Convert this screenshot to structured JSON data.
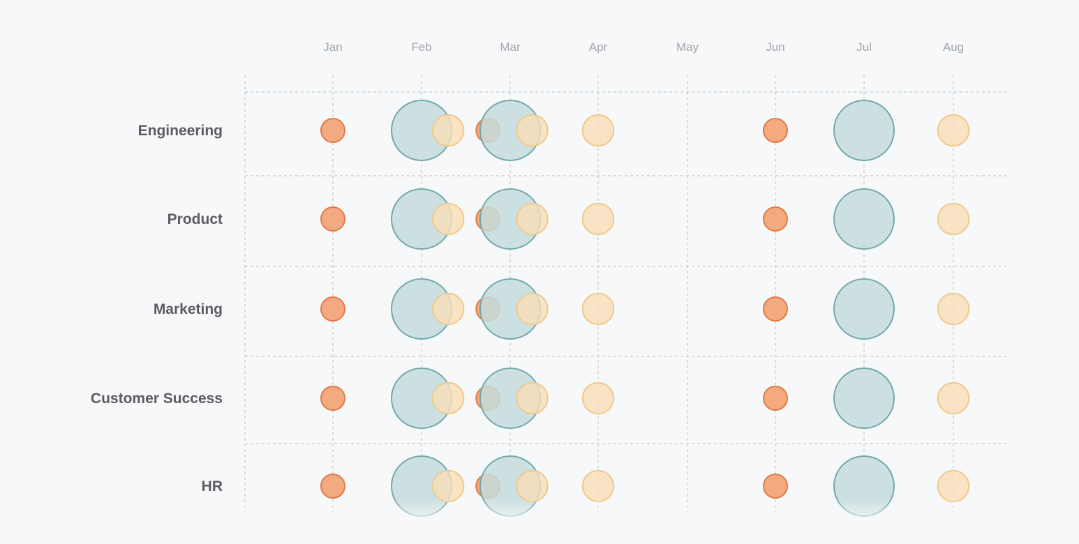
{
  "chart_data": {
    "type": "scatter",
    "subtype": "bubble-timeline",
    "months": [
      "Jan",
      "Feb",
      "Mar",
      "Apr",
      "May",
      "Jun",
      "Jul",
      "Aug"
    ],
    "rows": [
      "Engineering",
      "Product",
      "Marketing",
      "Customer Success",
      "HR"
    ],
    "grid": true,
    "colors": {
      "orange_fill": "#f2a57a",
      "orange_stroke": "#e07a45",
      "teal_fill": "#c4dcdd",
      "teal_stroke": "#72a9ab",
      "peach_fill": "#f8ddb8",
      "peach_stroke": "#f1c98c",
      "grid": "#c6c9cd",
      "background": "#f7f8f9"
    },
    "series": [
      {
        "kind": "orange",
        "points": [
          {
            "row": "Engineering",
            "month": 1.0,
            "size": 1
          },
          {
            "row": "Engineering",
            "month": 2.75,
            "size": 1
          },
          {
            "row": "Engineering",
            "month": 6.0,
            "size": 1
          },
          {
            "row": "Product",
            "month": 1.0,
            "size": 1
          },
          {
            "row": "Product",
            "month": 2.75,
            "size": 1
          },
          {
            "row": "Product",
            "month": 6.0,
            "size": 1
          },
          {
            "row": "Marketing",
            "month": 1.0,
            "size": 1
          },
          {
            "row": "Marketing",
            "month": 2.75,
            "size": 1
          },
          {
            "row": "Marketing",
            "month": 6.0,
            "size": 1
          },
          {
            "row": "Customer Success",
            "month": 1.0,
            "size": 1
          },
          {
            "row": "Customer Success",
            "month": 2.75,
            "size": 1
          },
          {
            "row": "Customer Success",
            "month": 6.0,
            "size": 1
          },
          {
            "row": "HR",
            "month": 1.0,
            "size": 1
          },
          {
            "row": "HR",
            "month": 2.75,
            "size": 1
          },
          {
            "row": "HR",
            "month": 6.0,
            "size": 1
          }
        ]
      },
      {
        "kind": "teal",
        "points": [
          {
            "row": "Engineering",
            "month": 2.0,
            "size": 3
          },
          {
            "row": "Engineering",
            "month": 3.0,
            "size": 3
          },
          {
            "row": "Engineering",
            "month": 7.0,
            "size": 3
          },
          {
            "row": "Product",
            "month": 2.0,
            "size": 3
          },
          {
            "row": "Product",
            "month": 3.0,
            "size": 3
          },
          {
            "row": "Product",
            "month": 7.0,
            "size": 3
          },
          {
            "row": "Marketing",
            "month": 2.0,
            "size": 3
          },
          {
            "row": "Marketing",
            "month": 3.0,
            "size": 3
          },
          {
            "row": "Marketing",
            "month": 7.0,
            "size": 3
          },
          {
            "row": "Customer Success",
            "month": 2.0,
            "size": 3
          },
          {
            "row": "Customer Success",
            "month": 3.0,
            "size": 3
          },
          {
            "row": "Customer Success",
            "month": 7.0,
            "size": 3
          },
          {
            "row": "HR",
            "month": 2.0,
            "size": 3
          },
          {
            "row": "HR",
            "month": 3.0,
            "size": 3
          },
          {
            "row": "HR",
            "month": 7.0,
            "size": 3
          }
        ]
      },
      {
        "kind": "peach",
        "points": [
          {
            "row": "Engineering",
            "month": 2.3,
            "size": 1.4
          },
          {
            "row": "Engineering",
            "month": 3.25,
            "size": 1.4
          },
          {
            "row": "Engineering",
            "month": 4.0,
            "size": 1.4
          },
          {
            "row": "Engineering",
            "month": 8.0,
            "size": 1.4
          },
          {
            "row": "Product",
            "month": 2.3,
            "size": 1.4
          },
          {
            "row": "Product",
            "month": 3.25,
            "size": 1.4
          },
          {
            "row": "Product",
            "month": 4.0,
            "size": 1.4
          },
          {
            "row": "Product",
            "month": 8.0,
            "size": 1.4
          },
          {
            "row": "Marketing",
            "month": 2.3,
            "size": 1.4
          },
          {
            "row": "Marketing",
            "month": 3.25,
            "size": 1.4
          },
          {
            "row": "Marketing",
            "month": 4.0,
            "size": 1.4
          },
          {
            "row": "Marketing",
            "month": 8.0,
            "size": 1.4
          },
          {
            "row": "Customer Success",
            "month": 2.3,
            "size": 1.4
          },
          {
            "row": "Customer Success",
            "month": 3.25,
            "size": 1.4
          },
          {
            "row": "Customer Success",
            "month": 4.0,
            "size": 1.4
          },
          {
            "row": "Customer Success",
            "month": 8.0,
            "size": 1.4
          },
          {
            "row": "HR",
            "month": 2.3,
            "size": 1.4
          },
          {
            "row": "HR",
            "month": 3.25,
            "size": 1.4
          },
          {
            "row": "HR",
            "month": 4.0,
            "size": 1.4
          },
          {
            "row": "HR",
            "month": 8.0,
            "size": 1.4
          }
        ]
      }
    ]
  }
}
